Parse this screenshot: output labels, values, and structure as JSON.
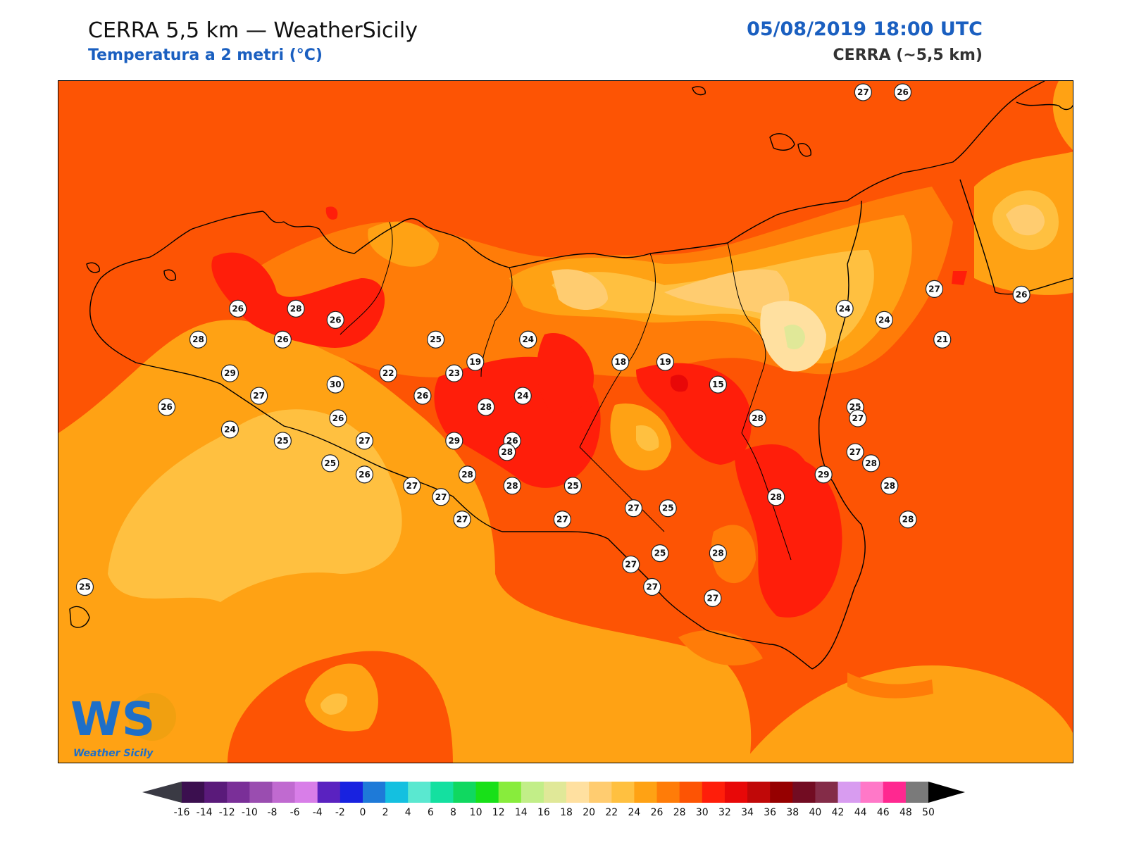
{
  "header": {
    "title": "CERRA 5,5 km — WeatherSicily",
    "subtitle": "Temperatura a 2 metri (°C)",
    "datetime": "05/08/2019 18:00 UTC",
    "model": "CERRA (~5,5 km)"
  },
  "logo": {
    "text": "WS",
    "caption": "Weather Sicily"
  },
  "colorbar": {
    "tick_labels": [
      "-16",
      "-14",
      "-12",
      "-10",
      "-8",
      "-6",
      "-4",
      "-2",
      "0",
      "2",
      "4",
      "6",
      "8",
      "10",
      "12",
      "14",
      "16",
      "18",
      "20",
      "22",
      "24",
      "26",
      "28",
      "30",
      "32",
      "34",
      "36",
      "38",
      "40",
      "42",
      "44",
      "46",
      "48",
      "50"
    ],
    "colors": [
      "#3b0f4f",
      "#5a1a7a",
      "#7a2f98",
      "#9a4db0",
      "#c06ad0",
      "#d87ee8",
      "#5a22c0",
      "#1822e0",
      "#1e7ad8",
      "#14c0e0",
      "#5ae8d0",
      "#14e0a0",
      "#10d860",
      "#18e018",
      "#88ec3c",
      "#c2ee88",
      "#e0e898",
      "#ffe0a0",
      "#ffcc70",
      "#ffc040",
      "#ffa214",
      "#ff7c08",
      "#fd5404",
      "#ff1e0a",
      "#e80808",
      "#c00808",
      "#960000",
      "#720c22",
      "#842c48",
      "#d89cf0",
      "#ff78c8",
      "#ff2890",
      "#7a7a7a",
      "#3a3a3a"
    ],
    "under_color": "#3a3a44",
    "over_color": "#000000"
  },
  "map": {
    "variable": "Temperatura a 2 metri",
    "unit": "°C",
    "stations": [
      {
        "value": "27",
        "lon": 14.95,
        "lat": 38.94
      },
      {
        "value": "26",
        "lon": 15.1,
        "lat": 38.94
      },
      {
        "value": "27",
        "lon": 15.22,
        "lat": 38.24
      },
      {
        "value": "26",
        "lon": 15.55,
        "lat": 38.22
      },
      {
        "value": "26",
        "lon": 12.58,
        "lat": 38.17
      },
      {
        "value": "28",
        "lon": 12.8,
        "lat": 38.17
      },
      {
        "value": "26",
        "lon": 12.95,
        "lat": 38.13
      },
      {
        "value": "24",
        "lon": 14.88,
        "lat": 38.17
      },
      {
        "value": "24",
        "lon": 15.03,
        "lat": 38.13
      },
      {
        "value": "21",
        "lon": 15.25,
        "lat": 38.06
      },
      {
        "value": "28",
        "lon": 12.43,
        "lat": 38.06
      },
      {
        "value": "26",
        "lon": 12.75,
        "lat": 38.06
      },
      {
        "value": "25",
        "lon": 13.33,
        "lat": 38.06
      },
      {
        "value": "24",
        "lon": 13.68,
        "lat": 38.06
      },
      {
        "value": "19",
        "lon": 13.48,
        "lat": 37.98
      },
      {
        "value": "18",
        "lon": 14.03,
        "lat": 37.98
      },
      {
        "value": "19",
        "lon": 14.2,
        "lat": 37.98
      },
      {
        "value": "29",
        "lon": 12.55,
        "lat": 37.94
      },
      {
        "value": "30",
        "lon": 12.95,
        "lat": 37.9
      },
      {
        "value": "22",
        "lon": 13.15,
        "lat": 37.94
      },
      {
        "value": "23",
        "lon": 13.4,
        "lat": 37.94
      },
      {
        "value": "15",
        "lon": 14.4,
        "lat": 37.9
      },
      {
        "value": "27",
        "lon": 12.66,
        "lat": 37.86
      },
      {
        "value": "26",
        "lon": 13.28,
        "lat": 37.86
      },
      {
        "value": "24",
        "lon": 13.66,
        "lat": 37.86
      },
      {
        "value": "26",
        "lon": 12.31,
        "lat": 37.82
      },
      {
        "value": "28",
        "lon": 13.52,
        "lat": 37.82
      },
      {
        "value": "25",
        "lon": 14.92,
        "lat": 37.82
      },
      {
        "value": "26",
        "lon": 12.96,
        "lat": 37.78
      },
      {
        "value": "28",
        "lon": 14.55,
        "lat": 37.78
      },
      {
        "value": "27",
        "lon": 14.93,
        "lat": 37.78
      },
      {
        "value": "24",
        "lon": 12.55,
        "lat": 37.74
      },
      {
        "value": "27",
        "lon": 13.06,
        "lat": 37.7
      },
      {
        "value": "29",
        "lon": 13.4,
        "lat": 37.7
      },
      {
        "value": "26",
        "lon": 13.62,
        "lat": 37.7
      },
      {
        "value": "25",
        "lon": 12.75,
        "lat": 37.7
      },
      {
        "value": "28",
        "lon": 13.6,
        "lat": 37.66
      },
      {
        "value": "27",
        "lon": 14.92,
        "lat": 37.66
      },
      {
        "value": "25",
        "lon": 12.93,
        "lat": 37.62
      },
      {
        "value": "28",
        "lon": 14.98,
        "lat": 37.62
      },
      {
        "value": "26",
        "lon": 13.06,
        "lat": 37.58
      },
      {
        "value": "29",
        "lon": 14.8,
        "lat": 37.58
      },
      {
        "value": "28",
        "lon": 13.45,
        "lat": 37.58
      },
      {
        "value": "27",
        "lon": 13.24,
        "lat": 37.54
      },
      {
        "value": "28",
        "lon": 13.62,
        "lat": 37.54
      },
      {
        "value": "25",
        "lon": 13.85,
        "lat": 37.54
      },
      {
        "value": "28",
        "lon": 15.05,
        "lat": 37.54
      },
      {
        "value": "27",
        "lon": 13.35,
        "lat": 37.5
      },
      {
        "value": "27",
        "lon": 14.08,
        "lat": 37.46
      },
      {
        "value": "25",
        "lon": 14.21,
        "lat": 37.46
      },
      {
        "value": "28",
        "lon": 14.62,
        "lat": 37.5
      },
      {
        "value": "27",
        "lon": 13.43,
        "lat": 37.42
      },
      {
        "value": "27",
        "lon": 13.81,
        "lat": 37.42
      },
      {
        "value": "28",
        "lon": 15.12,
        "lat": 37.42
      },
      {
        "value": "25",
        "lon": 14.18,
        "lat": 37.3
      },
      {
        "value": "28",
        "lon": 14.4,
        "lat": 37.3
      },
      {
        "value": "27",
        "lon": 14.07,
        "lat": 37.26
      },
      {
        "value": "27",
        "lon": 14.15,
        "lat": 37.18
      },
      {
        "value": "27",
        "lon": 14.38,
        "lat": 37.14
      },
      {
        "value": "25",
        "lon": 12.0,
        "lat": 37.18
      }
    ]
  }
}
